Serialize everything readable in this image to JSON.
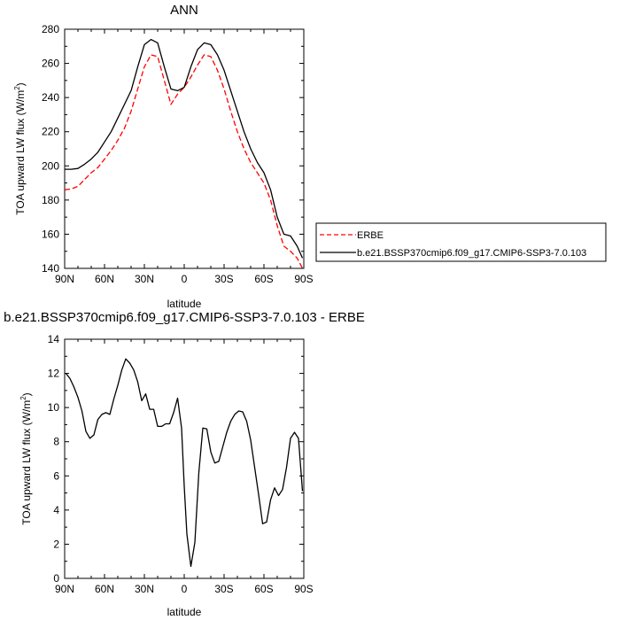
{
  "chart_data": [
    {
      "type": "line",
      "title": "ANN",
      "xlabel": "latitude",
      "ylabel": "TOA upward LW flux (W/m",
      "ylabel_sup": "2",
      "ylabel_close": ")",
      "xlim": [
        90,
        -90
      ],
      "ylim": [
        140,
        280
      ],
      "xticks": [
        90,
        60,
        30,
        0,
        -30,
        -60,
        -90
      ],
      "xticklabels": [
        "90N",
        "60N",
        "30N",
        "0",
        "30S",
        "60S",
        "90S"
      ],
      "yticks": [
        140,
        160,
        180,
        200,
        220,
        240,
        260,
        280
      ],
      "yticklabels": [
        "140",
        "160",
        "180",
        "200",
        "220",
        "240",
        "260",
        "280"
      ],
      "legend": {
        "placement": "right",
        "entries": [
          "ERBE",
          "b.e21.BSSP370cmip6.f09_g17.CMIP6-SSP3-7.0.103"
        ]
      },
      "series": [
        {
          "name": "ERBE",
          "color": "#ff0000",
          "dash": true,
          "x": [
            90,
            85,
            80,
            75,
            70,
            65,
            60,
            55,
            50,
            45,
            40,
            35,
            30,
            25,
            20,
            15,
            10,
            5,
            0,
            -5,
            -10,
            -15,
            -20,
            -25,
            -30,
            -35,
            -40,
            -45,
            -50,
            -55,
            -60,
            -65,
            -70,
            -75,
            -80,
            -85,
            -89
          ],
          "y": [
            186,
            186.5,
            188,
            192,
            196,
            199,
            204,
            209,
            215,
            222,
            232,
            245,
            258,
            265,
            264,
            250,
            236,
            242,
            246,
            252,
            259,
            265,
            264,
            256,
            245,
            232,
            220,
            210,
            202,
            196,
            190,
            180,
            165,
            153,
            150,
            146,
            140
          ]
        },
        {
          "name": "b.e21.BSSP370cmip6.f09_g17.CMIP6-SSP3-7.0.103",
          "color": "#000000",
          "dash": false,
          "x": [
            90,
            85,
            80,
            75,
            70,
            65,
            60,
            55,
            50,
            45,
            40,
            35,
            30,
            25,
            20,
            15,
            10,
            5,
            0,
            -5,
            -10,
            -15,
            -20,
            -25,
            -30,
            -35,
            -40,
            -45,
            -50,
            -55,
            -60,
            -65,
            -70,
            -75,
            -80,
            -85,
            -89
          ],
          "y": [
            198,
            198,
            198.5,
            201,
            204,
            208,
            214,
            220,
            228,
            236,
            244,
            258,
            271,
            274,
            272,
            258,
            245,
            244,
            246,
            258,
            268,
            272,
            271,
            265,
            256,
            244,
            232,
            220,
            210,
            202,
            196,
            186,
            170,
            160,
            159,
            153,
            146
          ]
        }
      ]
    },
    {
      "type": "line",
      "title": "b.e21.BSSP370cmip6.f09_g17.CMIP6-SSP3-7.0.103 - ERBE",
      "xlabel": "latitude",
      "ylabel": "TOA upward LW flux (W/m",
      "ylabel_sup": "2",
      "ylabel_close": ")",
      "xlim": [
        90,
        -90
      ],
      "ylim": [
        0,
        14
      ],
      "xticks": [
        90,
        60,
        30,
        0,
        -30,
        -60,
        -90
      ],
      "xticklabels": [
        "90N",
        "60N",
        "30N",
        "0",
        "30S",
        "60S",
        "90S"
      ],
      "yticks": [
        0,
        2,
        4,
        6,
        8,
        10,
        12,
        14
      ],
      "yticklabels": [
        "0",
        "2",
        "4",
        "6",
        "8",
        "10",
        "12",
        "14"
      ],
      "series": [
        {
          "color": "#000000",
          "dash": false,
          "x": [
            89,
            86,
            83,
            80,
            77,
            74,
            71,
            68,
            65,
            62,
            59,
            56,
            53,
            50,
            47,
            44,
            41,
            38,
            35,
            32,
            29,
            26,
            23,
            20,
            17,
            14,
            11,
            8,
            5,
            2,
            0,
            -2,
            -5,
            -8,
            -11,
            -14,
            -17,
            -20,
            -23,
            -26,
            -29,
            -32,
            -35,
            -38,
            -41,
            -44,
            -47,
            -50,
            -53,
            -56,
            -59,
            -62,
            -65,
            -68,
            -71,
            -74,
            -77,
            -80,
            -83,
            -86,
            -89
          ],
          "y": [
            12,
            11.7,
            11.2,
            10.6,
            9.8,
            8.6,
            8.2,
            8.4,
            9.3,
            9.6,
            9.7,
            9.6,
            10.5,
            11.3,
            12.2,
            12.85,
            12.6,
            12.2,
            11.5,
            10.4,
            10.8,
            9.9,
            9.9,
            8.9,
            8.9,
            9.05,
            9.05,
            9.7,
            10.55,
            8.8,
            5.4,
            2.6,
            0.7,
            2.1,
            6.2,
            8.8,
            8.75,
            7.4,
            6.75,
            6.85,
            7.7,
            8.55,
            9.2,
            9.6,
            9.8,
            9.75,
            9.2,
            8.1,
            6.5,
            4.9,
            3.2,
            3.3,
            4.6,
            5.3,
            4.85,
            5.2,
            6.5,
            8.2,
            8.55,
            8.2,
            5.1
          ]
        }
      ]
    }
  ]
}
